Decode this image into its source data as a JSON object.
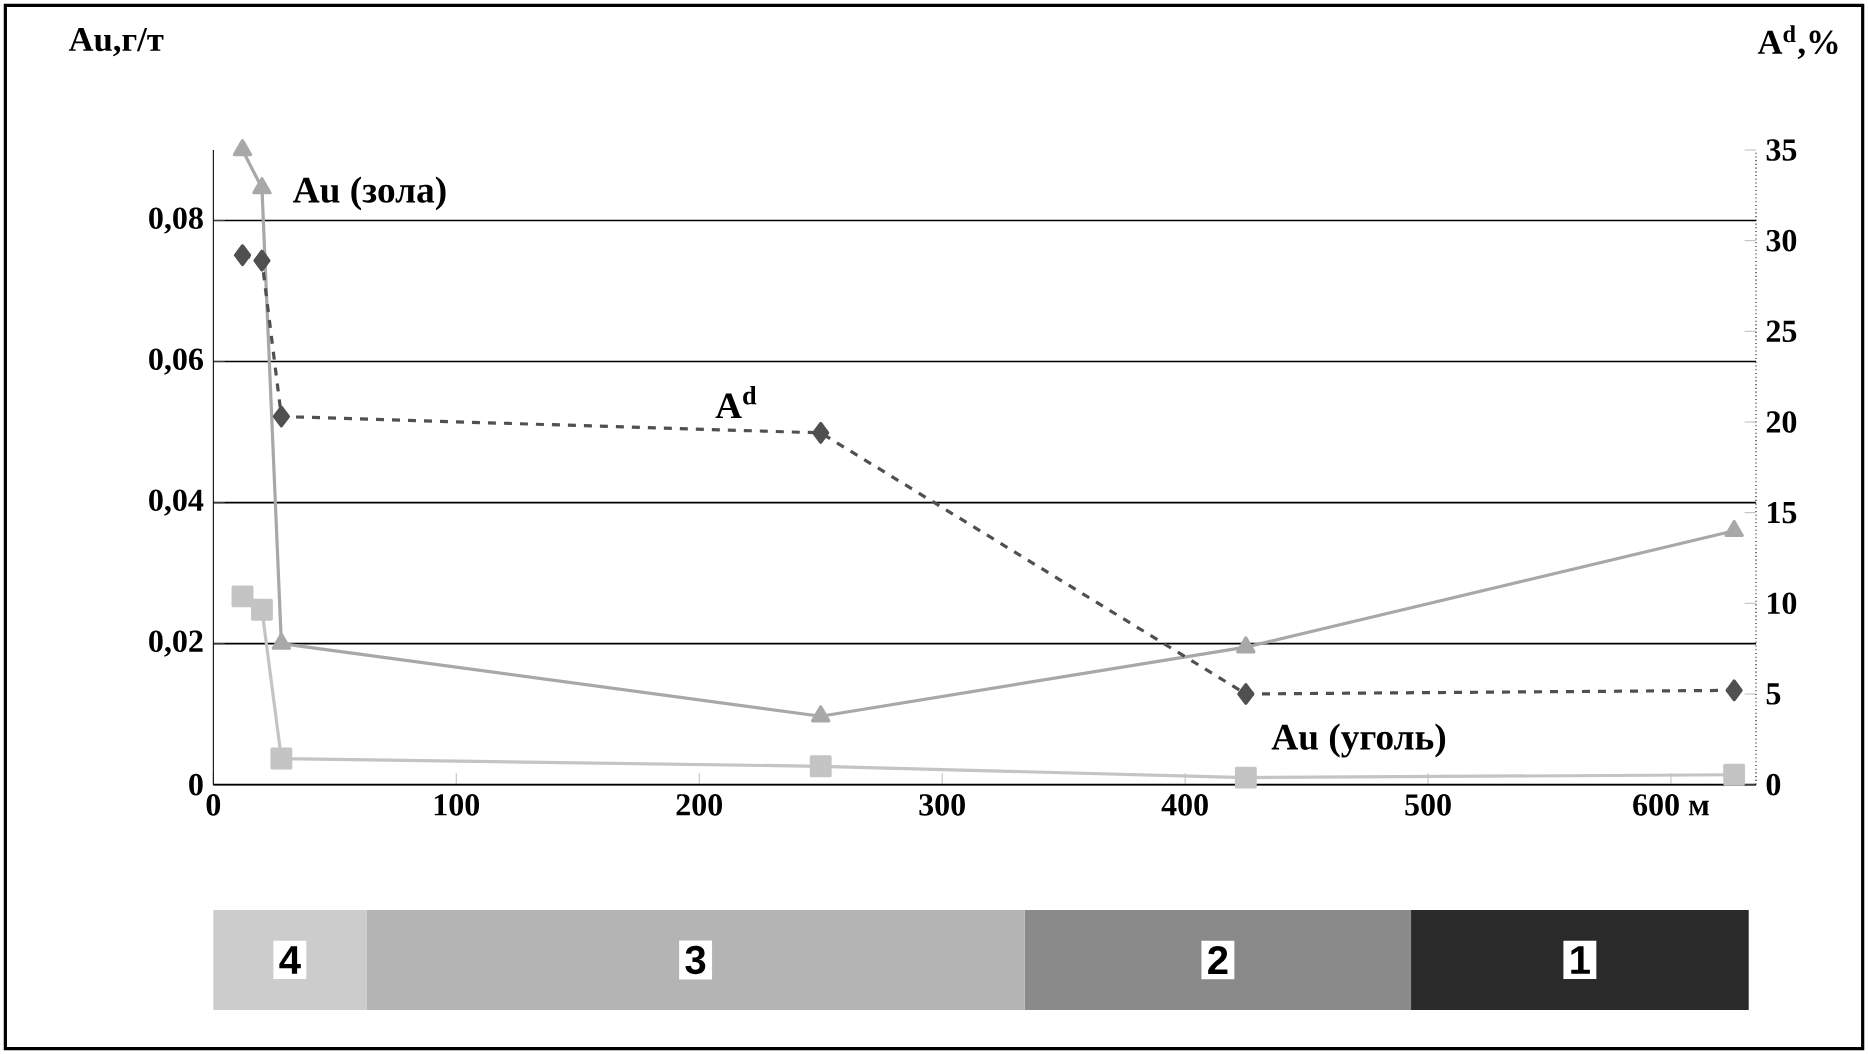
{
  "chart_data": [
    {
      "type": "line",
      "ylabel": "Au,г/т",
      "y2label": "A$^{d}$,%",
      "x": [
        12,
        20,
        28,
        250,
        425,
        626
      ],
      "xlim": [
        0,
        635
      ],
      "xticks": [
        0,
        100,
        200,
        300,
        400,
        500,
        {
          "value": 600,
          "label": "600 м"
        }
      ],
      "ylim": [
        0,
        0.09
      ],
      "yticks": [
        0,
        {
          "value": 0.02,
          "label": "0,02"
        },
        {
          "value": 0.04,
          "label": "0,04"
        },
        {
          "value": 0.06,
          "label": "0,06"
        },
        {
          "value": 0.08,
          "label": "0,08"
        }
      ],
      "y2lim": [
        0,
        35
      ],
      "y2ticks": [
        0,
        5,
        10,
        15,
        20,
        25,
        30,
        35
      ],
      "grid": "y",
      "series": [
        {
          "name": "Au (зола)",
          "color": "#a8a8a8",
          "marker": "triangle",
          "line_style": "solid",
          "values": [
            0.09,
            0.0846,
            0.02,
            0.0097,
            0.0195,
            0.036
          ]
        },
        {
          "name": "A$^{d}$",
          "color": "#505050",
          "marker": "diamond",
          "line_style": "dashed",
          "axis": "y2",
          "values": [
            29.2,
            28.9,
            20.3,
            19.4,
            5,
            5.2
          ]
        },
        {
          "name": "Au (уголь)",
          "color": "#c4c4c4",
          "marker": "square",
          "line_style": "solid",
          "values": [
            0.0267,
            0.0248,
            0.0037,
            0.0026,
            0.001,
            0.0014
          ]
        }
      ]
    },
    {
      "type": "bar",
      "orientation": "horizontal",
      "stacked": true,
      "categories": [
        null
      ],
      "xlim": [
        0,
        635
      ],
      "tick_labels": false,
      "series": [
        {
          "name": "4",
          "color": "#cccccc",
          "values": [
            63
          ]
        },
        {
          "name": "3",
          "color": "#b4b4b4",
          "values": [
            271
          ]
        },
        {
          "name": "2",
          "color": "#8a8a8a",
          "values": [
            159
          ]
        },
        {
          "name": "1",
          "color": "#2a2a2a",
          "values": [
            139
          ]
        }
      ]
    }
  ]
}
